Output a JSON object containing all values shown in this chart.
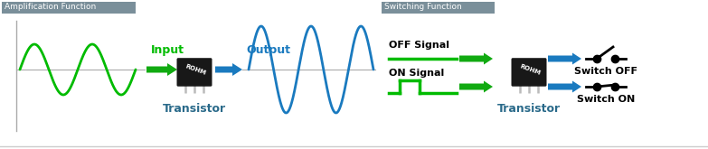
{
  "bg_color": "#ffffff",
  "amp_label": "Amplification Function",
  "switch_label": "Switching Function",
  "label_bg": "#7a8f9a",
  "input_label": "Input",
  "output_label": "Output",
  "transistor_label": "Transistor",
  "off_signal_label": "OFF Signal",
  "on_signal_label": "ON Signal",
  "switch_off_label": "Switch OFF",
  "switch_on_label": "Switch ON",
  "green_color": "#00bb00",
  "blue_color": "#1a7abf",
  "arrow_green": "#11aa11",
  "arrow_blue": "#1a7abf",
  "transistor_body": "#181818",
  "gray_line": "#aaaaaa",
  "black": "#000000",
  "white": "#ffffff",
  "divider_color": "#cccccc",
  "note_color": "#555555"
}
